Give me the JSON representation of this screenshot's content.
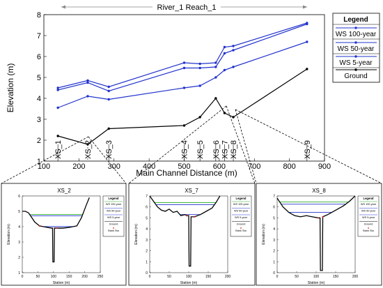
{
  "chart_data": [
    {
      "type": "line",
      "title": "River_1 Reach_1",
      "xlabel": "Main Channel Distance (m)",
      "ylabel": "Elevation (m)",
      "xlim": [
        100,
        900
      ],
      "ylim": [
        1,
        8
      ],
      "xticks": [
        "100",
        "200",
        "300",
        "400",
        "500",
        "600",
        "700",
        "800",
        "900"
      ],
      "yticks": [
        "1",
        "2",
        "3",
        "4",
        "5",
        "6",
        "7",
        "8"
      ],
      "legend_title": "Legend",
      "legend_position": "top-right",
      "series": [
        {
          "name": "WS 100-year",
          "color": "#2233cc",
          "x": [
            140,
            225,
            285,
            500,
            545,
            590,
            615,
            640,
            850
          ],
          "y": [
            4.5,
            4.85,
            4.55,
            5.7,
            5.65,
            5.7,
            6.45,
            6.5,
            7.6
          ]
        },
        {
          "name": "WS 50-year",
          "color": "#2233cc",
          "x": [
            140,
            225,
            285,
            500,
            545,
            590,
            615,
            640,
            850
          ],
          "y": [
            4.4,
            4.75,
            4.35,
            5.45,
            5.45,
            5.5,
            6.15,
            6.3,
            7.55
          ]
        },
        {
          "name": "WS 5-year",
          "color": "#2233cc",
          "x": [
            140,
            225,
            285,
            500,
            545,
            590,
            615,
            640,
            850
          ],
          "y": [
            3.55,
            4.1,
            3.95,
            4.5,
            4.6,
            5.0,
            5.35,
            5.5,
            6.7
          ]
        },
        {
          "name": "Ground",
          "color": "#000000",
          "x": [
            140,
            225,
            285,
            500,
            545,
            590,
            615,
            640,
            850
          ],
          "y": [
            2.2,
            1.8,
            2.55,
            2.7,
            3.1,
            4.0,
            3.3,
            3.1,
            5.4
          ]
        }
      ],
      "annotations": [
        {
          "label": "XS_1",
          "x": 140
        },
        {
          "label": "XS_2",
          "x": 225
        },
        {
          "label": "XS_3",
          "x": 285
        },
        {
          "label": "XS_4",
          "x": 500
        },
        {
          "label": "XS_5",
          "x": 545
        },
        {
          "label": "XS_6",
          "x": 590
        },
        {
          "label": "XS_7",
          "x": 615
        },
        {
          "label": "XS_8",
          "x": 640
        },
        {
          "label": "XS_9",
          "x": 850
        }
      ]
    },
    {
      "type": "line",
      "title": "XS_2",
      "xlabel": "Station (m)",
      "ylabel": "Elevation (m)",
      "xlim": [
        0,
        250
      ],
      "ylim": [
        1,
        6
      ],
      "xticks": [
        "0",
        "50",
        "100",
        "150",
        "200",
        "250"
      ],
      "yticks": [
        "1",
        "2",
        "3",
        "4",
        "5",
        "6"
      ],
      "legend": [
        "Legend",
        "WS 100-year",
        "WS 50-year",
        "WS 5-year",
        "Ground",
        "Bank Sta"
      ],
      "ws_levels": [
        {
          "name": "WS 100-year",
          "y": 4.8,
          "color": "#22aa22"
        },
        {
          "name": "WS 50-year",
          "y": 4.7,
          "color": "#2233cc"
        },
        {
          "name": "WS 5-year",
          "y": 4.0,
          "color": "#2233cc"
        }
      ],
      "ground": {
        "x": [
          0,
          10,
          20,
          40,
          55,
          80,
          95,
          97,
          98,
          102,
          103,
          110,
          130,
          150,
          175,
          190,
          205,
          215
        ],
        "y": [
          5.0,
          5.0,
          4.9,
          4.3,
          4.05,
          3.95,
          3.9,
          3.9,
          1.7,
          1.7,
          3.9,
          3.9,
          3.9,
          3.95,
          4.05,
          4.6,
          5.4,
          5.9
        ]
      },
      "banks_x": [
        55,
        110
      ]
    },
    {
      "type": "line",
      "title": "XS_7",
      "xlabel": "Station (m)",
      "ylabel": "Elevation (m)",
      "xlim": [
        0,
        200
      ],
      "ylim": [
        0,
        7
      ],
      "xticks": [
        "0",
        "50",
        "100",
        "150",
        "200"
      ],
      "yticks": [
        "0",
        "1",
        "2",
        "3",
        "4",
        "5",
        "6",
        "7"
      ],
      "legend": [
        "Legend",
        "WS 100-year",
        "WS 50-year",
        "WS 5-year",
        "Ground",
        "Bank Sta"
      ],
      "ws_levels": [
        {
          "name": "WS 100-year",
          "y": 6.4,
          "color": "#22aa22"
        },
        {
          "name": "WS 50-year",
          "y": 6.2,
          "color": "#2233cc"
        },
        {
          "name": "WS 5-year",
          "y": 5.3,
          "color": "#2233cc"
        }
      ],
      "ground": {
        "x": [
          0,
          10,
          20,
          30,
          40,
          50,
          60,
          70,
          80,
          90,
          95,
          100,
          101,
          105,
          106,
          115,
          130,
          145,
          160,
          170,
          180
        ],
        "y": [
          7.0,
          6.5,
          6.0,
          5.7,
          5.6,
          5.8,
          5.5,
          5.6,
          5.2,
          5.3,
          5.2,
          5.2,
          0.6,
          0.6,
          5.1,
          5.1,
          5.3,
          5.6,
          5.9,
          6.4,
          7.0
        ]
      },
      "banks_x": [
        95,
        115
      ]
    },
    {
      "type": "line",
      "title": "XS_8",
      "xlabel": "Station (m)",
      "ylabel": "Elevation (m)",
      "xlim": [
        0,
        200
      ],
      "ylim": [
        0,
        7
      ],
      "xticks": [
        "0",
        "50",
        "100",
        "150",
        "200"
      ],
      "yticks": [
        "0",
        "1",
        "2",
        "3",
        "4",
        "5",
        "6",
        "7"
      ],
      "legend": [
        "Legend",
        "WS 100-year",
        "WS 50-year",
        "WS 5-year",
        "Ground",
        "Bank Sta"
      ],
      "ws_levels": [
        {
          "name": "WS 100-year",
          "y": 6.45,
          "color": "#22aa22"
        },
        {
          "name": "WS 50-year",
          "y": 6.25,
          "color": "#2233cc"
        },
        {
          "name": "WS 5-year",
          "y": 5.5,
          "color": "#2233cc"
        }
      ],
      "ground": {
        "x": [
          0,
          15,
          30,
          45,
          60,
          75,
          90,
          105,
          110,
          111,
          116,
          117,
          130,
          150,
          170,
          185,
          200
        ],
        "y": [
          6.8,
          6.0,
          5.5,
          5.2,
          5.1,
          5.2,
          5.1,
          5.0,
          5.0,
          0.2,
          0.2,
          5.1,
          5.3,
          5.7,
          6.1,
          6.5,
          7.0
        ]
      },
      "banks_x": [
        105,
        117
      ]
    }
  ]
}
